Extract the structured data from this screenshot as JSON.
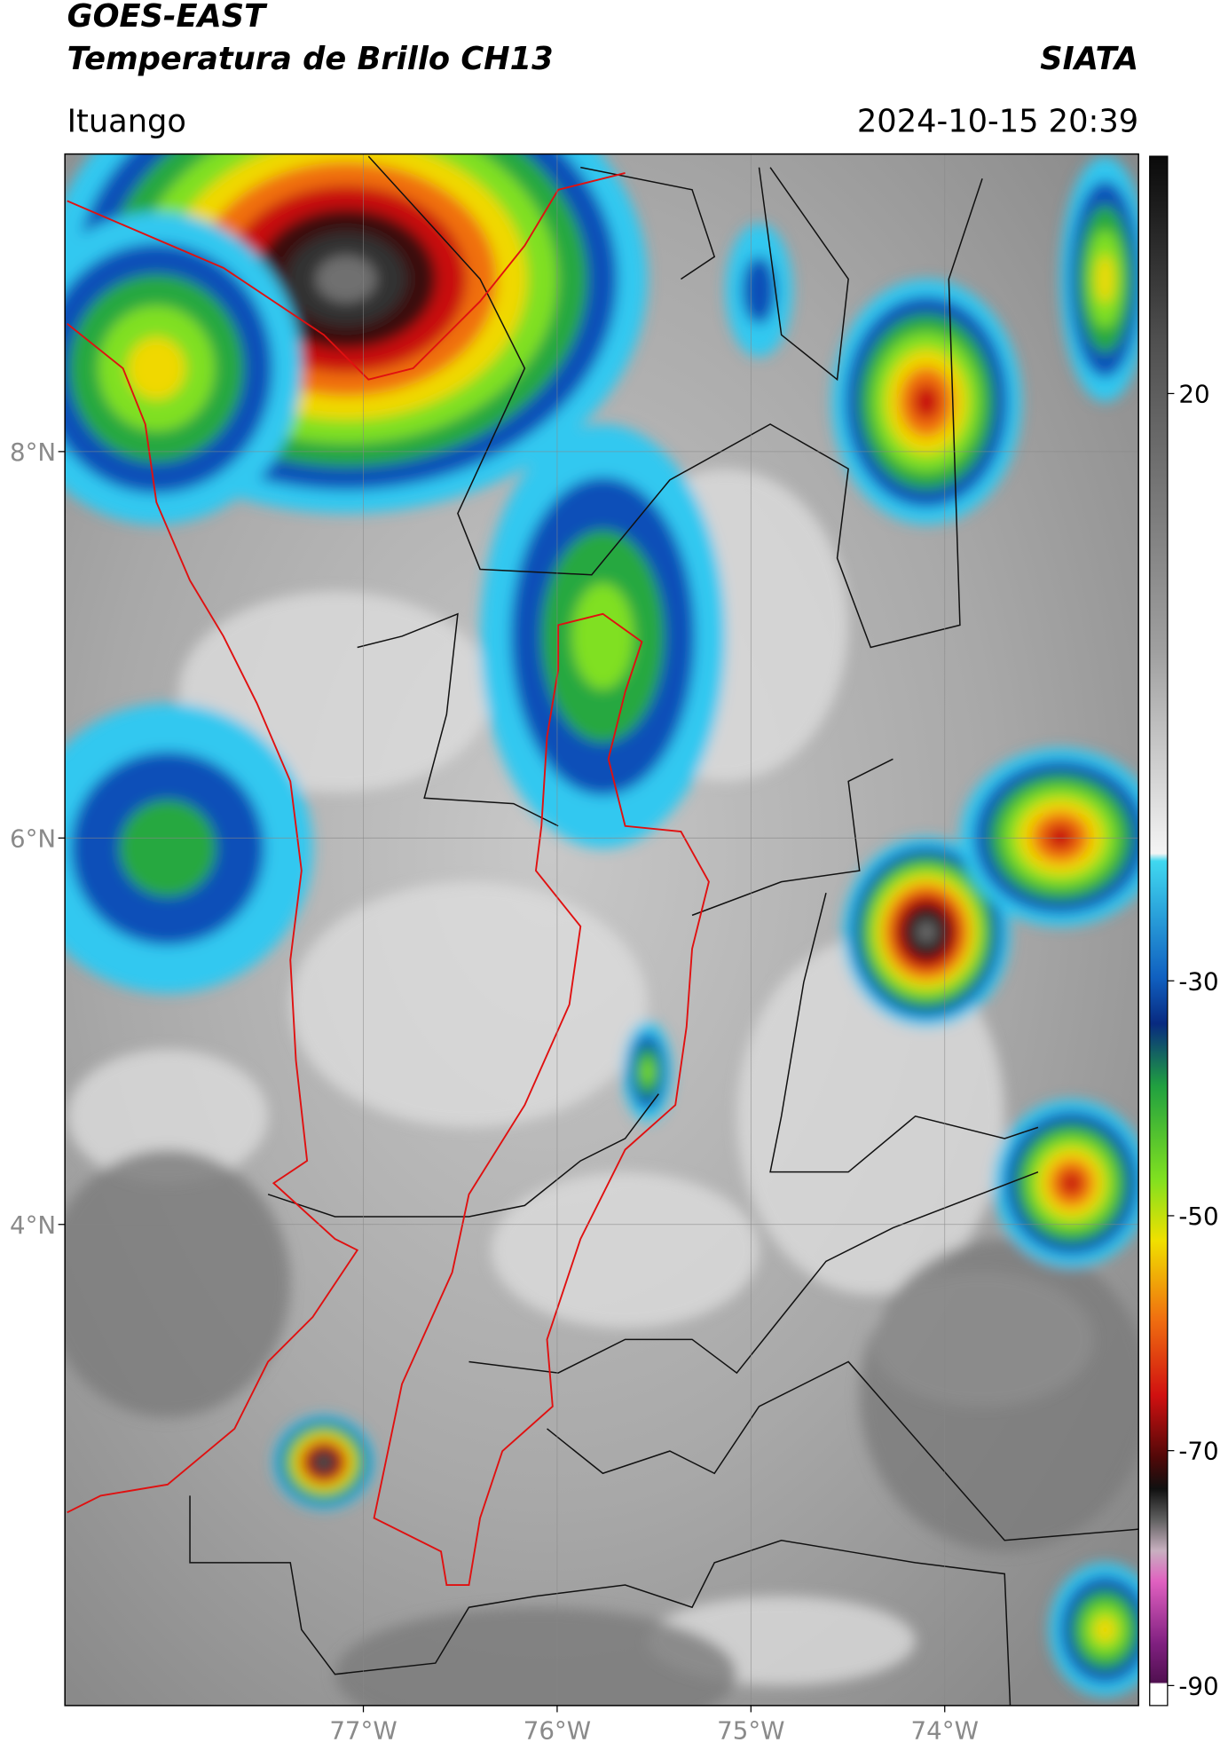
{
  "header": {
    "title": "GOES-EAST",
    "subtitle": "Temperatura de Brillo CH13",
    "agency": "SIATA",
    "location": "Ituango",
    "timestamp": "2024-10-15 20:39"
  },
  "map": {
    "xlim": [
      -78.54,
      -73.0
    ],
    "ylim": [
      1.51,
      9.54
    ],
    "xticks": [
      {
        "value": -77,
        "label": "77°W"
      },
      {
        "value": -76,
        "label": "76°W"
      },
      {
        "value": -75,
        "label": "75°W"
      },
      {
        "value": -74,
        "label": "74°W"
      }
    ],
    "yticks": [
      {
        "value": 8,
        "label": "8°N"
      },
      {
        "value": 6,
        "label": "6°N"
      },
      {
        "value": 4,
        "label": "4°N"
      }
    ],
    "grid": true
  },
  "colorbar": {
    "lim": [
      -91.7,
      40.2
    ],
    "ticks": [
      20,
      -30,
      -50,
      -70,
      -90
    ]
  }
}
